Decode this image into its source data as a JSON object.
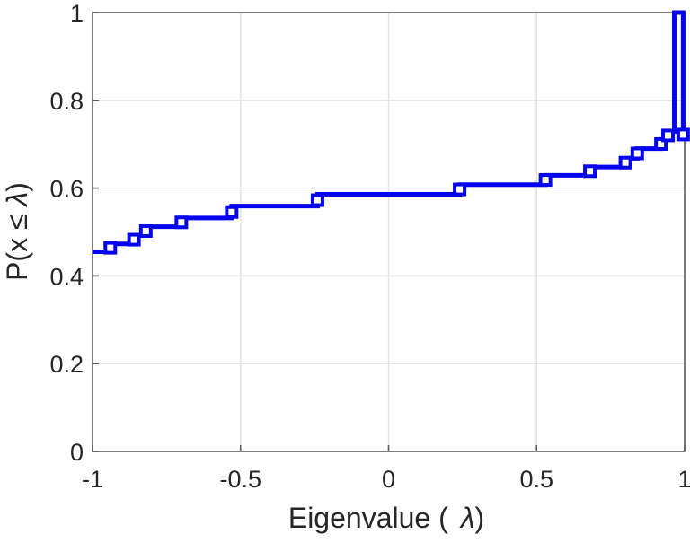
{
  "figure": {
    "background": "#ffffff"
  },
  "chart_data": {
    "type": "line",
    "subtype": "empirical-cdf-stairs",
    "title": "",
    "xlabel": "Eigenvalue ( λ)",
    "ylabel": "P(x ≤ λ)",
    "xlabel_parts": {
      "prefix": "Eigenvalue (",
      "lambda": "λ",
      "suffix": ")"
    },
    "ylabel_parts": {
      "prefix": "P(x ≤",
      "lambda": "λ",
      "suffix": ")"
    },
    "xlim": [
      -1,
      1
    ],
    "ylim": [
      0,
      1
    ],
    "xticks": [
      -1,
      -0.5,
      0,
      0.5,
      1
    ],
    "xtick_labels": [
      "-1",
      "-0.5",
      "0",
      "0.5",
      "1"
    ],
    "yticks": [
      0,
      0.2,
      0.4,
      0.6,
      0.8,
      1
    ],
    "ytick_labels": [
      "0",
      "0.2",
      "0.4",
      "0.6",
      "0.8",
      "1"
    ],
    "grid": true,
    "legend": null,
    "colors": {
      "line": "#0404f0",
      "axis": "#5c5c5c",
      "grid": "#e2e2e2",
      "text": "#262626",
      "marker_face": "#ffffff"
    },
    "series": [
      {
        "name": "eigenvalue-ecdf",
        "marker": "square",
        "points": [
          [
            -1.0,
            0.455
          ],
          [
            -0.94,
            0.473
          ],
          [
            -0.86,
            0.492
          ],
          [
            -0.82,
            0.512
          ],
          [
            -0.7,
            0.532
          ],
          [
            -0.53,
            0.559
          ],
          [
            -0.24,
            0.586
          ],
          [
            0.24,
            0.608
          ],
          [
            0.53,
            0.629
          ],
          [
            0.68,
            0.648
          ],
          [
            0.8,
            0.668
          ],
          [
            0.84,
            0.69
          ],
          [
            0.92,
            0.711
          ],
          [
            0.944,
            0.729
          ]
        ],
        "extends_to_x": 1.0,
        "final_spike": {
          "x_left": 0.965,
          "x_right": 0.995,
          "y_base": 0.729,
          "y_top": 1.0
        },
        "spike_marker": {
          "x": 0.995,
          "y": 0.722
        }
      }
    ]
  }
}
